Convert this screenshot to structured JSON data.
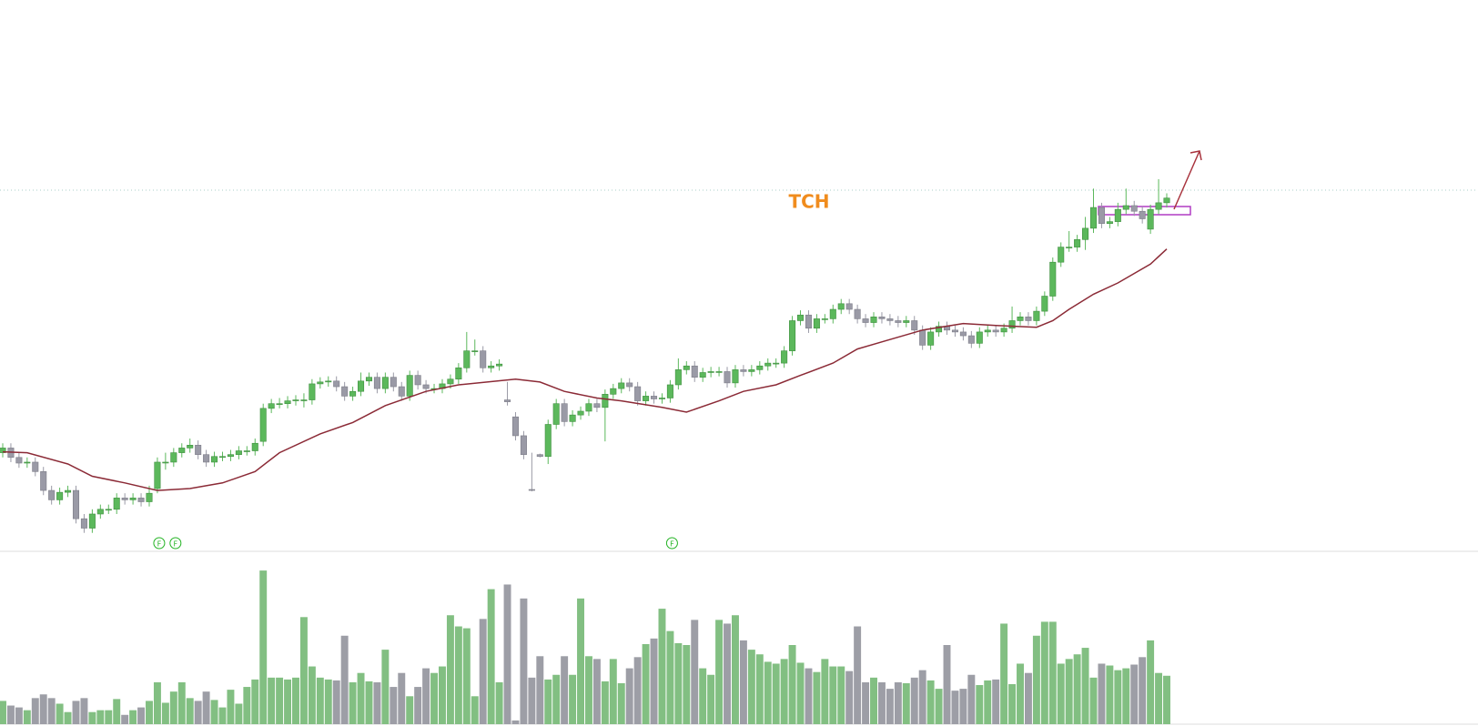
{
  "chart_data": {
    "type": "candlestick",
    "title": "TCH",
    "open": [
      12.0,
      12.5,
      11.5,
      10.9,
      11.0,
      10.0,
      8.0,
      7.0,
      7.8,
      8.0,
      5.0,
      4.0,
      5.5,
      6.0,
      6.0,
      7.2,
      7.0,
      7.2,
      6.8,
      8.2,
      11.0,
      11.0,
      12.0,
      12.5,
      12.8,
      11.8,
      11.0,
      11.6,
      11.6,
      11.8,
      12.2,
      12.2,
      13.2,
      16.7,
      17.2,
      17.2,
      17.5,
      17.6,
      17.6,
      19.3,
      19.5,
      19.6,
      19.0,
      18.0,
      18.5,
      19.6,
      20.0,
      18.8,
      20.0,
      19.0,
      18.0,
      20.2,
      19.2,
      18.8,
      18.8,
      19.3,
      19.8,
      21.0,
      22.8,
      22.8,
      21.0,
      21.2,
      17.6,
      15.8,
      13.8,
      8.1,
      11.8,
      11.6,
      15.0,
      17.2,
      15.3,
      16.0,
      16.4,
      17.2,
      16.8,
      18.2,
      18.8,
      19.4,
      19.0,
      17.5,
      18.0,
      17.7,
      17.8,
      19.2,
      20.8,
      21.2,
      20.0,
      20.5,
      20.6,
      20.6,
      19.4,
      20.8,
      20.6,
      20.8,
      21.2,
      21.5,
      21.5,
      22.8,
      26.0,
      26.6,
      25.2,
      26.2,
      26.2,
      27.2,
      27.8,
      27.2,
      26.2,
      25.8,
      26.4,
      26.2,
      26.0,
      25.8,
      26.0,
      25.0,
      23.4,
      24.8,
      25.4,
      25.0,
      24.8,
      24.4,
      23.6,
      24.8,
      25.0,
      24.8,
      25.2,
      26.0,
      26.4,
      26.0,
      27.0,
      28.6,
      32.2,
      33.8,
      33.8,
      34.6,
      35.8,
      38.0,
      36.3,
      36.5,
      37.8,
      38.2,
      37.6,
      35.7,
      37.8,
      38.5
    ],
    "high": [
      13.0,
      13.0,
      12.0,
      11.5,
      11.5,
      10.5,
      8.5,
      8.3,
      8.5,
      8.5,
      5.5,
      6.0,
      6.5,
      6.5,
      7.7,
      7.7,
      7.7,
      7.7,
      8.5,
      11.5,
      12.0,
      12.5,
      13.0,
      13.5,
      13.3,
      12.3,
      12.1,
      12.1,
      12.3,
      12.7,
      12.7,
      13.5,
      17.2,
      17.7,
      17.8,
      18.0,
      18.1,
      18.3,
      19.8,
      20.0,
      20.1,
      20.1,
      19.5,
      19.0,
      20.5,
      20.5,
      20.5,
      20.5,
      20.5,
      19.5,
      20.7,
      20.7,
      19.7,
      19.3,
      19.8,
      20.3,
      21.5,
      24.8,
      24.0,
      23.3,
      21.7,
      21.9,
      19.5,
      16.3,
      14.3,
      12.0,
      11.9,
      15.5,
      17.7,
      17.7,
      16.5,
      16.9,
      17.7,
      17.7,
      18.7,
      19.3,
      19.9,
      19.9,
      19.5,
      18.5,
      18.5,
      18.3,
      19.7,
      22.0,
      21.7,
      21.7,
      21.0,
      21.1,
      21.1,
      21.1,
      21.3,
      21.3,
      21.3,
      21.7,
      22.0,
      22.0,
      23.3,
      26.5,
      27.1,
      27.1,
      26.7,
      26.7,
      27.7,
      28.3,
      28.3,
      27.7,
      26.7,
      26.9,
      26.9,
      26.7,
      26.5,
      26.5,
      26.5,
      25.5,
      25.3,
      25.9,
      25.9,
      25.5,
      25.3,
      24.9,
      25.3,
      25.5,
      25.5,
      25.7,
      27.5,
      26.9,
      26.9,
      27.5,
      29.1,
      32.7,
      34.3,
      35.5,
      35.1,
      37.0,
      40.0,
      38.5,
      37.0,
      38.5,
      40.0,
      38.7,
      38.1,
      38.3,
      41.0,
      39.5
    ],
    "low": [
      11.5,
      11.0,
      10.4,
      10.4,
      9.5,
      7.5,
      6.5,
      6.5,
      7.3,
      4.5,
      3.5,
      3.5,
      5.0,
      5.5,
      5.5,
      6.5,
      6.5,
      6.3,
      6.3,
      7.7,
      10.2,
      10.5,
      11.5,
      12.0,
      11.3,
      10.5,
      10.5,
      11.1,
      11.1,
      11.3,
      11.7,
      11.7,
      12.7,
      16.2,
      16.7,
      16.7,
      17.0,
      16.8,
      17.1,
      18.8,
      19.0,
      18.5,
      17.5,
      17.5,
      18.0,
      19.1,
      18.3,
      18.3,
      18.5,
      17.5,
      17.5,
      18.7,
      18.3,
      18.3,
      18.3,
      18.8,
      19.3,
      20.5,
      22.3,
      20.5,
      20.5,
      20.7,
      17.0,
      13.3,
      11.3,
      7.9,
      11.5,
      10.8,
      14.5,
      14.8,
      14.8,
      15.5,
      15.9,
      16.3,
      13.2,
      17.7,
      18.3,
      18.5,
      17.0,
      17.0,
      17.2,
      17.2,
      17.3,
      18.7,
      20.3,
      19.5,
      19.5,
      20.0,
      20.1,
      18.9,
      18.9,
      20.1,
      20.1,
      20.3,
      20.7,
      21.0,
      21.0,
      22.3,
      25.5,
      24.7,
      24.7,
      25.7,
      25.7,
      26.7,
      26.7,
      25.7,
      25.3,
      25.3,
      25.7,
      25.5,
      25.3,
      25.3,
      24.5,
      22.9,
      22.9,
      24.3,
      24.5,
      24.3,
      23.9,
      23.1,
      23.1,
      24.3,
      24.3,
      24.3,
      24.7,
      25.5,
      25.5,
      25.5,
      26.5,
      28.1,
      31.7,
      33.3,
      33.3,
      33.5,
      35.3,
      35.8,
      35.8,
      36.0,
      37.3,
      37.1,
      36.3,
      35.2,
      37.3,
      38.0
    ],
    "close": [
      12.5,
      11.5,
      10.9,
      11.0,
      10.0,
      8.0,
      7.0,
      7.8,
      8.0,
      5.0,
      4.0,
      5.5,
      6.0,
      6.0,
      7.2,
      7.0,
      7.2,
      6.8,
      7.7,
      11.0,
      11.0,
      12.0,
      12.5,
      12.8,
      11.8,
      11.0,
      11.6,
      11.6,
      11.8,
      12.2,
      12.2,
      13.0,
      16.7,
      17.2,
      17.2,
      17.5,
      17.6,
      17.6,
      19.3,
      19.5,
      19.6,
      19.0,
      18.0,
      18.5,
      19.6,
      20.0,
      18.8,
      20.0,
      19.0,
      18.0,
      20.2,
      19.2,
      18.8,
      18.8,
      19.3,
      19.8,
      21.0,
      22.8,
      22.8,
      21.0,
      21.2,
      21.4,
      17.4,
      13.8,
      11.8,
      8.0,
      11.6,
      15.0,
      17.2,
      15.3,
      16.0,
      16.4,
      17.2,
      16.8,
      18.2,
      18.8,
      19.4,
      19.0,
      17.5,
      18.0,
      17.7,
      17.8,
      19.2,
      20.8,
      21.2,
      20.0,
      20.5,
      20.6,
      20.6,
      19.4,
      20.8,
      20.6,
      20.8,
      21.2,
      21.5,
      21.5,
      22.8,
      26.0,
      26.6,
      25.2,
      26.2,
      26.2,
      27.2,
      27.8,
      27.2,
      26.2,
      25.8,
      26.4,
      26.2,
      26.0,
      25.8,
      26.0,
      25.0,
      23.4,
      24.8,
      25.4,
      25.0,
      24.8,
      24.4,
      23.6,
      24.8,
      25.0,
      24.8,
      25.2,
      26.0,
      26.4,
      26.0,
      27.0,
      28.6,
      32.2,
      33.8,
      33.8,
      34.6,
      35.8,
      38.0,
      36.3,
      36.5,
      37.8,
      38.2,
      37.6,
      36.8,
      37.8,
      38.5,
      39.0
    ],
    "ylim": [
      0,
      60
    ],
    "up_color": "#5cb85c",
    "down_color": "#9a9aa6",
    "ma": {
      "color": "#8b2a36",
      "x": [
        0,
        3,
        8,
        11,
        15,
        19,
        23,
        27,
        31,
        34,
        39,
        43,
        47,
        52,
        56,
        63,
        66,
        69,
        73,
        76,
        81,
        84,
        88,
        91,
        95,
        98,
        102,
        105,
        109,
        113,
        118,
        122,
        127,
        129,
        131,
        134,
        137,
        141,
        143
      ],
      "values": [
        12.1,
        12.0,
        10.8,
        9.5,
        8.8,
        8.0,
        8.2,
        8.8,
        10.0,
        12.0,
        14.0,
        15.2,
        17.0,
        18.5,
        19.2,
        19.8,
        19.5,
        18.5,
        17.8,
        17.5,
        16.8,
        16.3,
        17.5,
        18.5,
        19.2,
        20.2,
        21.5,
        23.0,
        24.0,
        25.0,
        25.7,
        25.5,
        25.3,
        26.0,
        27.2,
        28.8,
        30.0,
        32.0,
        33.6
      ]
    },
    "volume": {
      "ylim": [
        0,
        170
      ],
      "up_color": "#82bf82",
      "down_color": "#9d9ea6",
      "values": [
        25,
        20,
        18,
        15,
        28,
        32,
        28,
        22,
        13,
        25,
        28,
        13,
        15,
        15,
        27,
        10,
        15,
        18,
        25,
        45,
        23,
        35,
        45,
        28,
        25,
        35,
        26,
        18,
        37,
        22,
        40,
        48,
        165,
        50,
        50,
        48,
        50,
        115,
        62,
        50,
        48,
        47,
        95,
        45,
        55,
        46,
        45,
        80,
        40,
        55,
        30,
        40,
        60,
        55,
        62,
        117,
        105,
        103,
        30,
        113,
        145,
        45,
        150,
        4,
        135,
        50,
        73,
        48,
        53,
        73,
        53,
        135,
        73,
        70,
        46,
        70,
        44,
        60,
        72,
        86,
        92,
        124,
        100,
        87,
        85,
        112,
        60,
        53,
        112,
        108,
        117,
        90,
        80,
        75,
        67,
        65,
        70,
        85,
        66,
        60,
        56,
        70,
        62,
        62,
        57,
        105,
        45,
        50,
        45,
        38,
        45,
        44,
        50,
        58,
        47,
        38,
        85,
        36,
        38,
        53,
        42,
        47,
        48,
        108,
        43,
        65,
        55,
        95,
        110,
        110,
        65,
        70,
        75,
        82,
        50,
        65,
        63,
        58,
        60,
        64,
        72,
        90,
        55,
        52
      ]
    },
    "events": [
      {
        "x": 19,
        "label": "F"
      },
      {
        "x": 21,
        "label": "F"
      },
      {
        "x": 82,
        "label": "F"
      }
    ]
  }
}
